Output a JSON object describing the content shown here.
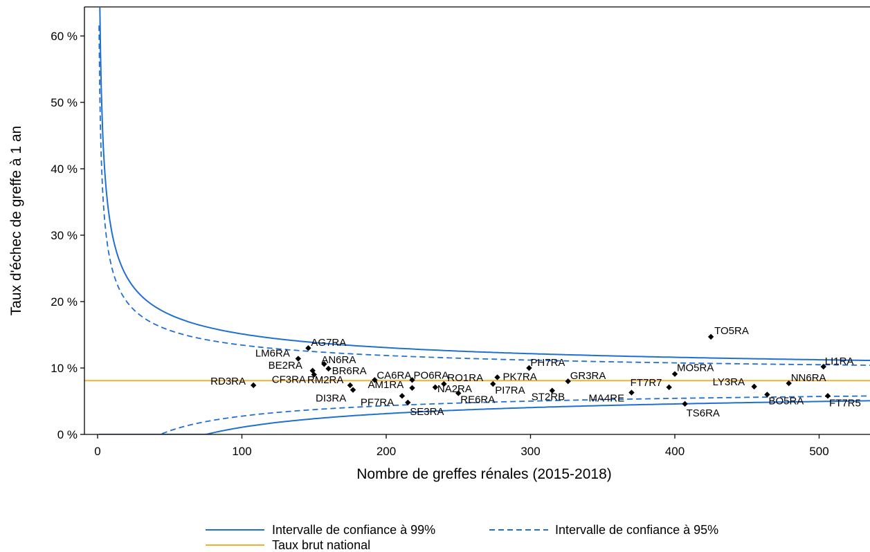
{
  "chart_data": {
    "type": "scatter",
    "title": "",
    "xlabel": "Nombre de greffes rénales (2015-2018)",
    "ylabel": "Taux d'échec de greffe à 1 an",
    "xlim": [
      0,
      535
    ],
    "ylim": [
      0,
      61
    ],
    "x_ticks": [
      0,
      100,
      200,
      300,
      400,
      500
    ],
    "x_tick_labels": [
      "0",
      "100",
      "200",
      "300",
      "400",
      "500"
    ],
    "y_ticks": [
      0,
      10,
      20,
      30,
      40,
      50,
      60
    ],
    "y_tick_labels": [
      "0 %",
      "10 %",
      "20 %",
      "30 %",
      "40 %",
      "50 %",
      "60 %"
    ],
    "grid": false,
    "national_rate": 8.1,
    "colors": {
      "ci": "#1f6fd1",
      "national": "#f0b030",
      "points": "#000000"
    },
    "points": [
      {
        "label": "RD3RA",
        "x": 108,
        "y": 7.4
      },
      {
        "label": "LM6RA",
        "x": 139,
        "y": 11.4
      },
      {
        "label": "AG7RA",
        "x": 146,
        "y": 13.0
      },
      {
        "label": "BE2RA",
        "x": 149,
        "y": 9.6
      },
      {
        "label": "CF3RA",
        "x": 150,
        "y": 9.0
      },
      {
        "label": "AN6RA",
        "x": 157,
        "y": 10.6
      },
      {
        "label": "BR6RA",
        "x": 160,
        "y": 9.9
      },
      {
        "label": "RM2RA",
        "x": 175,
        "y": 7.4
      },
      {
        "label": "DI3RA",
        "x": 177,
        "y": 6.7
      },
      {
        "label": "CA6RA",
        "x": 192,
        "y": 8.2
      },
      {
        "label": "PF7RA",
        "x": 211,
        "y": 5.8
      },
      {
        "label": "SE3RA",
        "x": 215,
        "y": 4.8
      },
      {
        "label": "AM1RA",
        "x": 218,
        "y": 7.0
      },
      {
        "label": "PO6RA",
        "x": 218,
        "y": 8.2
      },
      {
        "label": "NA2RA",
        "x": 234,
        "y": 7.1
      },
      {
        "label": "RO1RA",
        "x": 240,
        "y": 7.6
      },
      {
        "label": "RE6RA",
        "x": 250,
        "y": 6.2
      },
      {
        "label": "PI7RA",
        "x": 274,
        "y": 7.6
      },
      {
        "label": "PK7RA",
        "x": 277,
        "y": 8.6
      },
      {
        "label": "PH7RA",
        "x": 299,
        "y": 10.0
      },
      {
        "label": "ST2RB",
        "x": 315,
        "y": 6.6
      },
      {
        "label": "GR3RA",
        "x": 326,
        "y": 8.0
      },
      {
        "label": "MA4RE",
        "x": 370,
        "y": 6.3
      },
      {
        "label": "FT7R7",
        "x": 396,
        "y": 7.1
      },
      {
        "label": "MO5RA",
        "x": 400,
        "y": 9.1
      },
      {
        "label": "TS6RA",
        "x": 407,
        "y": 4.6
      },
      {
        "label": "TO5RA",
        "x": 425,
        "y": 14.7
      },
      {
        "label": "LY3RA",
        "x": 455,
        "y": 7.2
      },
      {
        "label": "BO5RA",
        "x": 464,
        "y": 6.0
      },
      {
        "label": "NN6RA",
        "x": 479,
        "y": 7.7
      },
      {
        "label": "LI1RA",
        "x": 503,
        "y": 10.2
      },
      {
        "label": "FT7R5",
        "x": 506,
        "y": 5.8
      }
    ],
    "legend": [
      {
        "name": "Intervalle de confiance à 99%",
        "style": "solid",
        "color": "#1f6fd1"
      },
      {
        "name": "Intervalle de confiance à 95%",
        "style": "dashed",
        "color": "#1f6fd1"
      },
      {
        "name": "Taux brut national",
        "style": "solid",
        "color": "#f0b030"
      }
    ],
    "legend_position": "bottom"
  }
}
